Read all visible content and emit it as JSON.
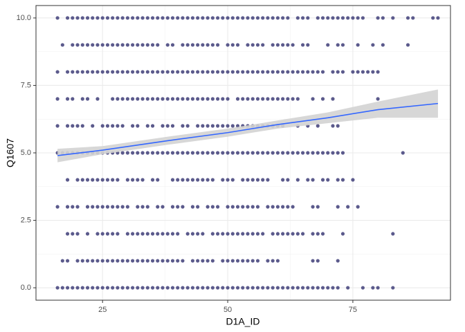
{
  "chart_data": {
    "type": "scatter",
    "x_label": "D1A_ID",
    "y_label": "Q1607",
    "xlim": [
      11.7,
      94.5
    ],
    "ylim": [
      -0.46,
      10.46
    ],
    "xticks": [
      25,
      50,
      75
    ],
    "yticks": [
      {
        "value": 0,
        "label": "0.0"
      },
      {
        "value": 2.5,
        "label": "2.5"
      },
      {
        "value": 5,
        "label": "5.0"
      },
      {
        "value": 7.5,
        "label": "7.5"
      },
      {
        "value": 10,
        "label": "10.0"
      }
    ],
    "grid": true,
    "color": "#5b5a8c",
    "levels": [
      {
        "y": 10,
        "x": [
          16,
          18,
          19,
          20,
          21,
          22,
          23,
          24,
          25,
          26,
          27,
          28,
          29,
          30,
          31,
          32,
          33,
          34,
          35,
          36,
          37,
          38,
          39,
          40,
          41,
          42,
          43,
          44,
          45,
          46,
          47,
          48,
          49,
          50,
          51,
          52,
          53,
          54,
          55,
          56,
          57,
          58,
          59,
          60,
          61,
          62,
          64,
          65,
          66,
          68,
          69,
          70,
          71,
          72,
          73,
          74,
          75,
          76,
          77,
          80,
          81,
          83,
          86,
          87,
          91,
          92
        ]
      },
      {
        "y": 9,
        "x": [
          17,
          19,
          20,
          21,
          22,
          23,
          24,
          25,
          26,
          27,
          28,
          29,
          30,
          31,
          32,
          33,
          34,
          35,
          36,
          38,
          39,
          41,
          42,
          43,
          44,
          45,
          46,
          47,
          48,
          50,
          51,
          52,
          54,
          55,
          56,
          57,
          59,
          60,
          61,
          62,
          63,
          65,
          66,
          70,
          72,
          73,
          76,
          79,
          81,
          86
        ]
      },
      {
        "y": 8,
        "x": [
          16,
          18,
          19,
          20,
          21,
          22,
          23,
          24,
          25,
          26,
          27,
          28,
          29,
          30,
          31,
          32,
          33,
          34,
          35,
          36,
          37,
          38,
          39,
          40,
          41,
          42,
          43,
          44,
          45,
          46,
          47,
          48,
          49,
          50,
          51,
          52,
          53,
          54,
          55,
          56,
          57,
          58,
          59,
          60,
          61,
          62,
          63,
          64,
          65,
          66,
          67,
          68,
          69,
          71,
          72,
          73,
          75,
          76,
          77,
          78,
          79,
          80
        ]
      },
      {
        "y": 7,
        "x": [
          16,
          18,
          19,
          21,
          22,
          24,
          27,
          28,
          29,
          30,
          31,
          32,
          33,
          34,
          35,
          36,
          37,
          38,
          39,
          40,
          41,
          42,
          43,
          44,
          45,
          46,
          47,
          48,
          49,
          50,
          52,
          53,
          54,
          55,
          56,
          57,
          58,
          59,
          60,
          61,
          62,
          63,
          64,
          67,
          69,
          71,
          80
        ]
      },
      {
        "y": 6,
        "x": [
          16,
          18,
          19,
          20,
          21,
          23,
          25,
          26,
          27,
          28,
          29,
          31,
          32,
          34,
          35,
          37,
          38,
          39,
          41,
          42,
          44,
          45,
          46,
          47,
          48,
          49,
          50,
          51,
          52,
          53,
          54,
          55,
          56,
          57,
          58,
          59,
          60,
          61,
          64,
          66,
          68,
          71,
          72
        ]
      },
      {
        "y": 5,
        "x": [
          16,
          17,
          18,
          19,
          20,
          21,
          22,
          23,
          24,
          25,
          26,
          27,
          28,
          29,
          30,
          31,
          32,
          33,
          34,
          35,
          36,
          37,
          38,
          39,
          40,
          41,
          42,
          43,
          44,
          45,
          46,
          47,
          48,
          49,
          50,
          51,
          52,
          53,
          54,
          55,
          56,
          57,
          58,
          59,
          60,
          61,
          62,
          63,
          64,
          65,
          66,
          67,
          68,
          69,
          70,
          71,
          72,
          73,
          85
        ]
      },
      {
        "y": 4,
        "x": [
          18,
          20,
          21,
          22,
          23,
          24,
          25,
          26,
          27,
          28,
          30,
          31,
          32,
          33,
          35,
          36,
          39,
          40,
          41,
          42,
          43,
          44,
          45,
          46,
          47,
          49,
          50,
          51,
          53,
          54,
          55,
          56,
          57,
          58,
          61,
          62,
          64,
          66,
          67,
          69,
          70,
          72,
          73,
          75
        ]
      },
      {
        "y": 3,
        "x": [
          16,
          18,
          19,
          20,
          22,
          23,
          24,
          25,
          26,
          27,
          28,
          29,
          30,
          32,
          33,
          34,
          36,
          37,
          39,
          40,
          41,
          43,
          44,
          46,
          47,
          48,
          50,
          51,
          52,
          53,
          54,
          55,
          56,
          58,
          59,
          60,
          61,
          62,
          63,
          67,
          68,
          72,
          74,
          76
        ]
      },
      {
        "y": 2,
        "x": [
          18,
          19,
          20,
          22,
          24,
          25,
          26,
          27,
          28,
          30,
          31,
          32,
          33,
          34,
          35,
          36,
          37,
          38,
          39,
          40,
          42,
          43,
          44,
          45,
          47,
          48,
          49,
          50,
          51,
          52,
          53,
          54,
          55,
          56,
          57,
          59,
          60,
          61,
          62,
          63,
          64,
          65,
          67,
          68,
          69,
          73,
          83
        ]
      },
      {
        "y": 1,
        "x": [
          17,
          18,
          20,
          21,
          22,
          23,
          24,
          25,
          26,
          27,
          28,
          29,
          30,
          31,
          32,
          33,
          34,
          35,
          36,
          37,
          38,
          39,
          40,
          41,
          43,
          44,
          45,
          46,
          47,
          49,
          50,
          51,
          52,
          53,
          54,
          55,
          56,
          58,
          59,
          60,
          67,
          68,
          72
        ]
      },
      {
        "y": 0,
        "x": [
          16,
          17,
          18,
          19,
          20,
          21,
          22,
          23,
          24,
          25,
          26,
          27,
          28,
          29,
          30,
          31,
          32,
          33,
          34,
          35,
          36,
          37,
          38,
          39,
          40,
          41,
          42,
          43,
          44,
          45,
          46,
          47,
          48,
          49,
          50,
          51,
          52,
          53,
          54,
          55,
          56,
          57,
          58,
          59,
          60,
          61,
          62,
          63,
          64,
          65,
          66,
          67,
          68,
          69,
          70,
          71,
          72,
          74,
          77,
          79,
          80,
          83
        ]
      }
    ],
    "trend": {
      "color": "#3366ff",
      "band_color": "#d3d3d3",
      "x": [
        16,
        25,
        38,
        50,
        60,
        70,
        80,
        92
      ],
      "values": [
        4.9,
        5.1,
        5.45,
        5.75,
        6.05,
        6.3,
        6.6,
        6.83
      ],
      "lower": [
        4.65,
        4.95,
        5.3,
        5.6,
        5.9,
        6.1,
        6.3,
        6.3
      ],
      "upper": [
        5.15,
        5.25,
        5.6,
        5.9,
        6.2,
        6.5,
        6.9,
        7.35
      ]
    }
  }
}
